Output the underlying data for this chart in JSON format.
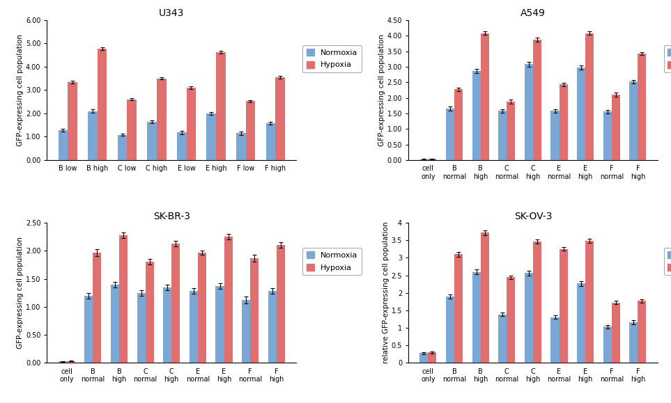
{
  "panels": [
    {
      "title": "U343",
      "ylabel": "GFP-expressing cell population",
      "ylim": [
        0,
        6.0
      ],
      "yticks": [
        0.0,
        1.0,
        2.0,
        3.0,
        4.0,
        5.0,
        6.0
      ],
      "yticklabels": [
        "0.00",
        "1.00",
        "2.00",
        "3.00",
        "4.00",
        "5.00",
        "6.00"
      ],
      "categories": [
        "B low",
        "B high",
        "C low",
        "C high",
        "E low",
        "E high",
        "F low",
        "F high"
      ],
      "normoxia": [
        1.28,
        2.1,
        1.08,
        1.65,
        1.18,
        2.0,
        1.15,
        1.58
      ],
      "hypoxia": [
        3.35,
        4.78,
        2.6,
        3.5,
        3.1,
        4.62,
        2.52,
        3.55
      ],
      "normoxia_err": [
        0.05,
        0.07,
        0.04,
        0.06,
        0.07,
        0.06,
        0.08,
        0.05
      ],
      "hypoxia_err": [
        0.06,
        0.06,
        0.05,
        0.05,
        0.07,
        0.05,
        0.05,
        0.06
      ],
      "has_cell_only": false
    },
    {
      "title": "A549",
      "ylabel": "GFP-expressing cell population",
      "ylim": [
        0,
        4.5
      ],
      "yticks": [
        0.0,
        0.5,
        1.0,
        1.5,
        2.0,
        2.5,
        3.0,
        3.5,
        4.0,
        4.5
      ],
      "yticklabels": [
        "0.00",
        "0.50",
        "1.00",
        "1.50",
        "2.00",
        "2.50",
        "3.00",
        "3.50",
        "4.00",
        "4.50"
      ],
      "categories": [
        "cell\nonly",
        "B\nnormal",
        "B\nhigh",
        "C\nnormal",
        "C\nhigh",
        "E\nnormal",
        "E\nhigh",
        "F\nnormal",
        "F\nhigh"
      ],
      "normoxia": [
        0.02,
        1.65,
        2.87,
        1.58,
        3.08,
        1.58,
        2.97,
        1.56,
        2.52
      ],
      "hypoxia": [
        0.03,
        2.27,
        4.08,
        1.88,
        3.87,
        2.43,
        4.08,
        2.1,
        3.42
      ],
      "normoxia_err": [
        0.01,
        0.06,
        0.07,
        0.05,
        0.08,
        0.05,
        0.07,
        0.06,
        0.06
      ],
      "hypoxia_err": [
        0.01,
        0.06,
        0.05,
        0.06,
        0.06,
        0.05,
        0.06,
        0.06,
        0.05
      ],
      "has_cell_only": true
    },
    {
      "title": "SK-BR-3",
      "ylabel": "GFP-expressing cell population",
      "ylim": [
        0,
        2.5
      ],
      "yticks": [
        0.0,
        0.5,
        1.0,
        1.5,
        2.0,
        2.5
      ],
      "yticklabels": [
        "0.00",
        "0.50",
        "1.00",
        "1.50",
        "2.00",
        "2.50"
      ],
      "categories": [
        "cell\nonly",
        "B\nnormal",
        "B\nhigh",
        "C\nnormal",
        "C\nhigh",
        "E\nnormal",
        "E\nhigh",
        "F\nnormal",
        "F\nhigh"
      ],
      "normoxia": [
        0.02,
        1.2,
        1.4,
        1.25,
        1.35,
        1.28,
        1.37,
        1.12,
        1.28
      ],
      "hypoxia": [
        0.03,
        1.97,
        2.28,
        1.8,
        2.13,
        1.97,
        2.25,
        1.87,
        2.1
      ],
      "normoxia_err": [
        0.01,
        0.05,
        0.05,
        0.05,
        0.05,
        0.05,
        0.05,
        0.06,
        0.05
      ],
      "hypoxia_err": [
        0.01,
        0.06,
        0.05,
        0.05,
        0.05,
        0.04,
        0.05,
        0.06,
        0.05
      ],
      "has_cell_only": true
    },
    {
      "title": "SK-OV-3",
      "ylabel": "relative GFP-expressing cell population",
      "ylim": [
        0,
        4.0
      ],
      "yticks": [
        0,
        0.5,
        1.0,
        1.5,
        2.0,
        2.5,
        3.0,
        3.5,
        4.0
      ],
      "yticklabels": [
        "0",
        "0.5",
        "1",
        "1.5",
        "2",
        "2.5",
        "3",
        "3.5",
        "4"
      ],
      "categories": [
        "cell\nonly",
        "B\nnormal",
        "B\nhigh",
        "C\nnormal",
        "C\nhigh",
        "E\nnormal",
        "E\nhigh",
        "F\nnormal",
        "F\nhigh"
      ],
      "normoxia": [
        0.28,
        1.9,
        2.6,
        1.38,
        2.57,
        1.3,
        2.27,
        1.03,
        1.15
      ],
      "hypoxia": [
        0.3,
        3.1,
        3.72,
        2.45,
        3.47,
        3.25,
        3.48,
        1.72,
        1.77
      ],
      "normoxia_err": [
        0.03,
        0.06,
        0.07,
        0.05,
        0.07,
        0.05,
        0.07,
        0.05,
        0.06
      ],
      "hypoxia_err": [
        0.03,
        0.07,
        0.07,
        0.05,
        0.06,
        0.05,
        0.06,
        0.05,
        0.05
      ],
      "has_cell_only": true
    }
  ],
  "normoxia_color": "#7BA7D4",
  "hypoxia_color": "#E07070",
  "bar_width": 0.32,
  "background_color": "#ffffff",
  "legend_fontsize": 8,
  "tick_fontsize": 7,
  "title_fontsize": 10,
  "ylabel_fontsize": 7.5
}
